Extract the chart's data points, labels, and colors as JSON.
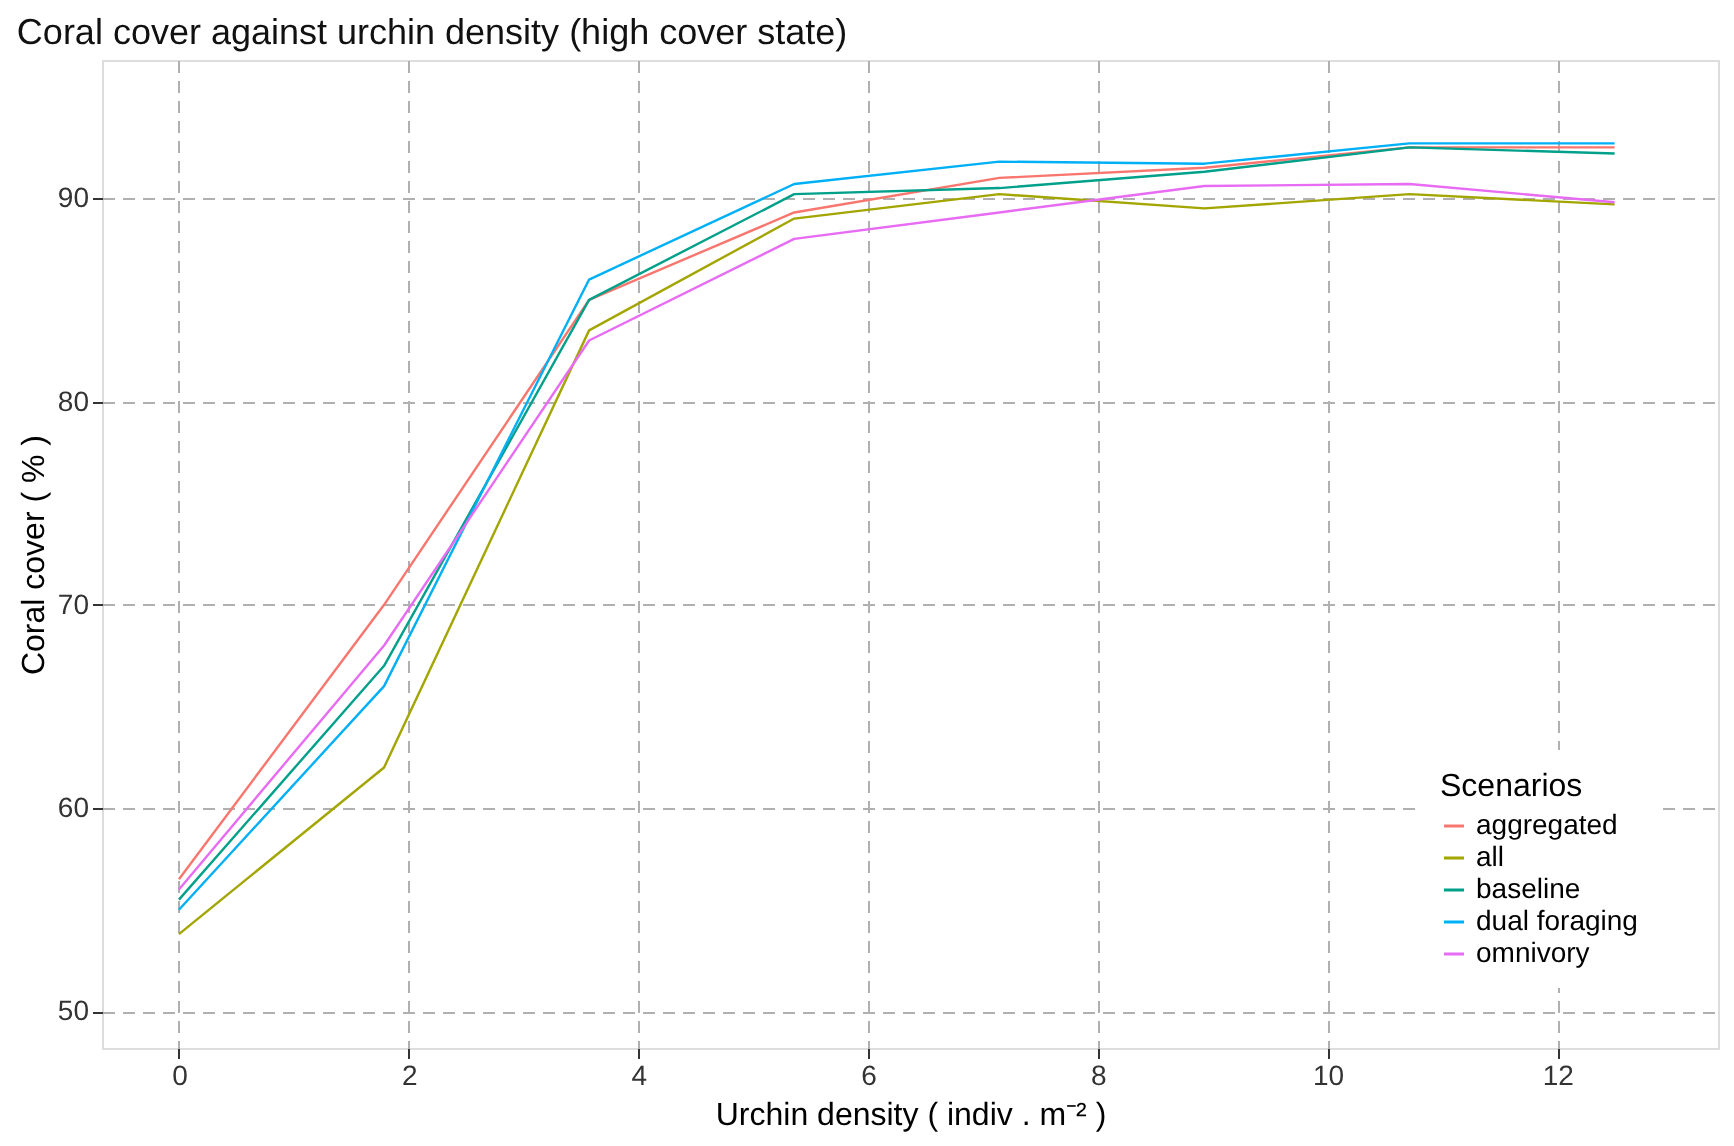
{
  "chart_data": {
    "type": "line",
    "title": "Coral cover against urchin density (high cover state)",
    "xlabel": "Urchin density ( indiv . m⁻² )",
    "ylabel": "Coral cover ( % )",
    "legend_title": "Scenarios",
    "x": [
      0,
      1.786,
      3.571,
      5.357,
      7.143,
      8.929,
      10.714,
      12.5
    ],
    "series": [
      {
        "name": "aggregated",
        "color": "#f8766d",
        "values": [
          56.5,
          70,
          85,
          89.3,
          91,
          91.5,
          92.5,
          92.5
        ]
      },
      {
        "name": "all",
        "color": "#a3a500",
        "values": [
          53.8,
          62,
          83.5,
          89,
          90.2,
          89.5,
          90.2,
          89.7
        ]
      },
      {
        "name": "baseline",
        "color": "#00a08a",
        "values": [
          55.5,
          67,
          85,
          90.2,
          90.5,
          91.3,
          92.5,
          92.2
        ]
      },
      {
        "name": "dual foraging",
        "color": "#00b0f6",
        "values": [
          55,
          66,
          86,
          90.7,
          91.8,
          91.7,
          92.7,
          92.7
        ]
      },
      {
        "name": "omnivory",
        "color": "#e76bf3",
        "values": [
          56,
          68,
          83,
          88,
          89.3,
          90.6,
          90.7,
          89.8
        ]
      }
    ],
    "xlim": [
      -0.67,
      13.4
    ],
    "ylim": [
      48.2,
      96.8
    ],
    "xticks": [
      0,
      2,
      4,
      6,
      8,
      10,
      12
    ],
    "yticks": [
      50,
      60,
      70,
      80,
      90
    ],
    "grid": true,
    "legend": "bottom right",
    "line_style": "solid",
    "marker": "none"
  }
}
